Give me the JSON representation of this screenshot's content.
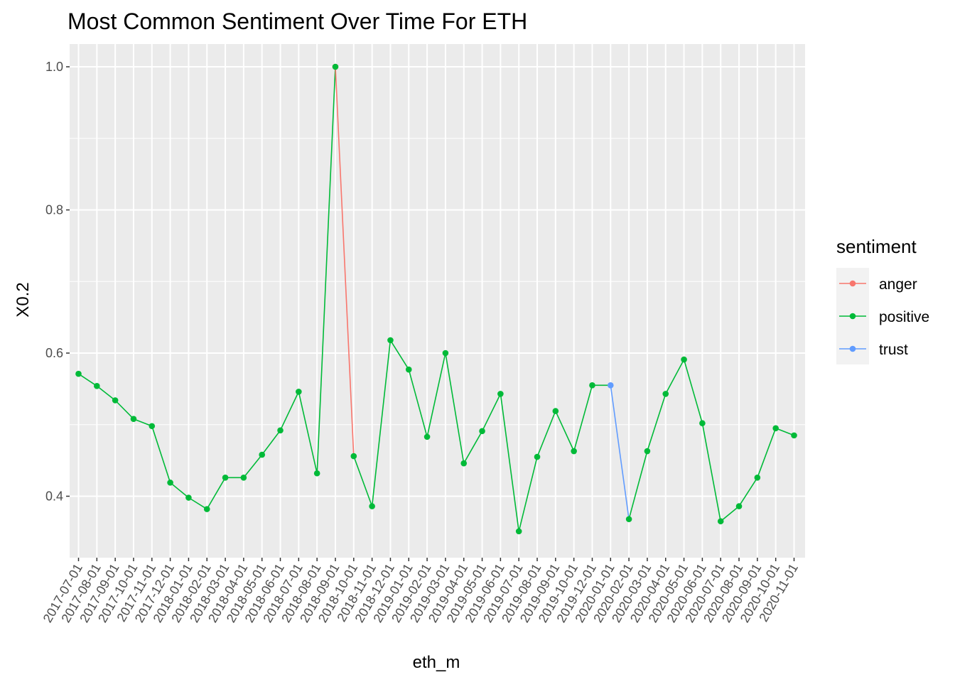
{
  "chart_data": {
    "type": "line",
    "title": "Most Common Sentiment Over Time For ETH",
    "xlabel": "eth_m",
    "ylabel": "X0.2",
    "ylim": [
      0.327,
      1.03
    ],
    "yticks": [
      "0.4",
      "0.6",
      "0.8",
      "1.0"
    ],
    "grid": true,
    "legend": {
      "title": "sentiment",
      "placement": "right",
      "entries": [
        {
          "name": "anger",
          "color": "#F8766D"
        },
        {
          "name": "positive",
          "color": "#00BA38"
        },
        {
          "name": "trust",
          "color": "#619CFF"
        }
      ]
    },
    "categories": [
      "2017-07-01",
      "2017-08-01",
      "2017-09-01",
      "2017-10-01",
      "2017-11-01",
      "2017-12-01",
      "2018-01-01",
      "2018-02-01",
      "2018-03-01",
      "2018-04-01",
      "2018-05-01",
      "2018-06-01",
      "2018-07-01",
      "2018-08-01",
      "2018-09-01",
      "2018-10-01",
      "2018-11-01",
      "2018-12-01",
      "2019-01-01",
      "2019-02-01",
      "2019-03-01",
      "2019-04-01",
      "2019-05-01",
      "2019-06-01",
      "2019-07-01",
      "2019-08-01",
      "2019-09-01",
      "2019-10-01",
      "2019-12-01",
      "2020-01-01",
      "2020-02-01",
      "2020-03-01",
      "2020-04-01",
      "2020-05-01",
      "2020-06-01",
      "2020-07-01",
      "2020-08-01",
      "2020-09-01",
      "2020-10-01",
      "2020-11-01"
    ],
    "points": [
      {
        "x": "2017-07-01",
        "y": 0.571,
        "sentiment": "positive"
      },
      {
        "x": "2017-08-01",
        "y": 0.554,
        "sentiment": "positive"
      },
      {
        "x": "2017-09-01",
        "y": 0.534,
        "sentiment": "positive"
      },
      {
        "x": "2017-10-01",
        "y": 0.508,
        "sentiment": "positive"
      },
      {
        "x": "2017-11-01",
        "y": 0.498,
        "sentiment": "positive"
      },
      {
        "x": "2017-12-01",
        "y": 0.419,
        "sentiment": "positive"
      },
      {
        "x": "2018-01-01",
        "y": 0.398,
        "sentiment": "positive"
      },
      {
        "x": "2018-02-01",
        "y": 0.382,
        "sentiment": "positive"
      },
      {
        "x": "2018-03-01",
        "y": 0.426,
        "sentiment": "positive"
      },
      {
        "x": "2018-04-01",
        "y": 0.426,
        "sentiment": "positive"
      },
      {
        "x": "2018-05-01",
        "y": 0.458,
        "sentiment": "positive"
      },
      {
        "x": "2018-06-01",
        "y": 0.492,
        "sentiment": "positive"
      },
      {
        "x": "2018-07-01",
        "y": 0.546,
        "sentiment": "positive"
      },
      {
        "x": "2018-08-01",
        "y": 0.432,
        "sentiment": "positive"
      },
      {
        "x": "2018-09-01",
        "y": 1.0,
        "sentiment": "anger"
      },
      {
        "x": "2018-09-01",
        "y": 1.0,
        "sentiment": "positive"
      },
      {
        "x": "2018-10-01",
        "y": 0.456,
        "sentiment": "positive"
      },
      {
        "x": "2018-11-01",
        "y": 0.386,
        "sentiment": "positive"
      },
      {
        "x": "2018-12-01",
        "y": 0.618,
        "sentiment": "positive"
      },
      {
        "x": "2019-01-01",
        "y": 0.577,
        "sentiment": "positive"
      },
      {
        "x": "2019-02-01",
        "y": 0.483,
        "sentiment": "positive"
      },
      {
        "x": "2019-03-01",
        "y": 0.6,
        "sentiment": "positive"
      },
      {
        "x": "2019-04-01",
        "y": 0.446,
        "sentiment": "positive"
      },
      {
        "x": "2019-05-01",
        "y": 0.491,
        "sentiment": "positive"
      },
      {
        "x": "2019-06-01",
        "y": 0.543,
        "sentiment": "positive"
      },
      {
        "x": "2019-07-01",
        "y": 0.351,
        "sentiment": "positive"
      },
      {
        "x": "2019-08-01",
        "y": 0.455,
        "sentiment": "positive"
      },
      {
        "x": "2019-09-01",
        "y": 0.519,
        "sentiment": "positive"
      },
      {
        "x": "2019-10-01",
        "y": 0.463,
        "sentiment": "positive"
      },
      {
        "x": "2019-12-01",
        "y": 0.555,
        "sentiment": "positive"
      },
      {
        "x": "2020-01-01",
        "y": 0.555,
        "sentiment": "trust"
      },
      {
        "x": "2020-02-01",
        "y": 0.368,
        "sentiment": "positive"
      },
      {
        "x": "2020-03-01",
        "y": 0.463,
        "sentiment": "positive"
      },
      {
        "x": "2020-04-01",
        "y": 0.543,
        "sentiment": "positive"
      },
      {
        "x": "2020-05-01",
        "y": 0.591,
        "sentiment": "positive"
      },
      {
        "x": "2020-06-01",
        "y": 0.502,
        "sentiment": "positive"
      },
      {
        "x": "2020-07-01",
        "y": 0.365,
        "sentiment": "positive"
      },
      {
        "x": "2020-08-01",
        "y": 0.386,
        "sentiment": "positive"
      },
      {
        "x": "2020-09-01",
        "y": 0.426,
        "sentiment": "positive"
      },
      {
        "x": "2020-10-01",
        "y": 0.495,
        "sentiment": "positive"
      },
      {
        "x": "2020-11-01",
        "y": 0.485,
        "sentiment": "positive"
      }
    ],
    "segments": [
      {
        "sentiment": "positive",
        "x": [
          "2017-07-01",
          "2017-08-01",
          "2017-09-01",
          "2017-10-01",
          "2017-11-01",
          "2017-12-01",
          "2018-01-01",
          "2018-02-01",
          "2018-03-01",
          "2018-04-01",
          "2018-05-01",
          "2018-06-01",
          "2018-07-01",
          "2018-08-01",
          "2018-09-01"
        ],
        "y": [
          0.571,
          0.554,
          0.534,
          0.508,
          0.498,
          0.419,
          0.398,
          0.382,
          0.426,
          0.426,
          0.458,
          0.492,
          0.546,
          0.432,
          1.0
        ]
      },
      {
        "sentiment": "anger",
        "x": [
          "2018-09-01",
          "2018-10-01"
        ],
        "y": [
          1.0,
          0.456
        ]
      },
      {
        "sentiment": "positive",
        "x": [
          "2018-10-01",
          "2018-11-01",
          "2018-12-01",
          "2019-01-01",
          "2019-02-01",
          "2019-03-01",
          "2019-04-01",
          "2019-05-01",
          "2019-06-01",
          "2019-07-01",
          "2019-08-01",
          "2019-09-01",
          "2019-10-01",
          "2019-12-01",
          "2020-01-01"
        ],
        "y": [
          0.456,
          0.386,
          0.618,
          0.577,
          0.483,
          0.6,
          0.446,
          0.491,
          0.543,
          0.351,
          0.455,
          0.519,
          0.463,
          0.555,
          0.555
        ]
      },
      {
        "sentiment": "trust",
        "x": [
          "2020-01-01",
          "2020-02-01"
        ],
        "y": [
          0.555,
          0.368
        ]
      },
      {
        "sentiment": "positive",
        "x": [
          "2020-02-01",
          "2020-03-01",
          "2020-04-01",
          "2020-05-01",
          "2020-06-01",
          "2020-07-01",
          "2020-08-01",
          "2020-09-01",
          "2020-10-01",
          "2020-11-01"
        ],
        "y": [
          0.368,
          0.463,
          0.543,
          0.591,
          0.502,
          0.365,
          0.386,
          0.426,
          0.495,
          0.485
        ]
      }
    ]
  }
}
